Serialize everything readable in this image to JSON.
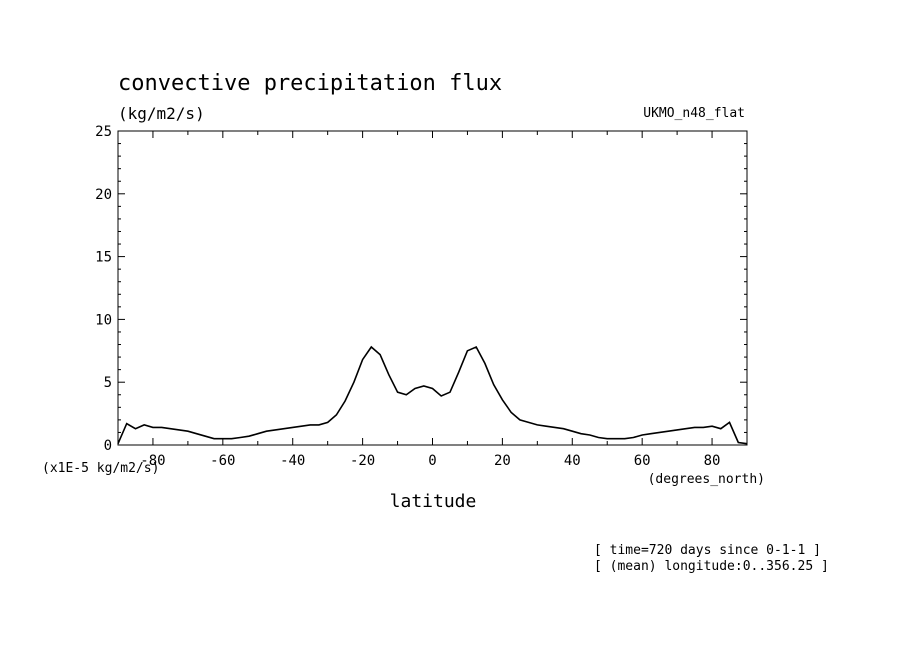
{
  "chart_data": {
    "type": "line",
    "title": "convective precipitation flux",
    "units_label": "(kg/m2/s)",
    "dataset_label": "UKMO_n48_flat",
    "scale_label": "(x1E-5 kg/m2/s)",
    "xlabel": "latitude",
    "x_units_label": "(degrees_north)",
    "info_lines": [
      "[ time=720 days since 0-1-1 ]",
      "[ (mean) longitude:0..356.25 ]"
    ],
    "xlim": [
      -90,
      90
    ],
    "ylim": [
      0,
      25
    ],
    "x_ticks": [
      "-80",
      "-60",
      "-40",
      "-20",
      "0",
      "20",
      "40",
      "60",
      "80"
    ],
    "y_ticks": [
      "0",
      "5",
      "10",
      "15",
      "20",
      "25"
    ],
    "grid": false,
    "series": [
      {
        "color": "#000000",
        "x": [
          -90,
          -87.5,
          -85,
          -82.5,
          -80,
          -77.5,
          -75,
          -72.5,
          -70,
          -67.5,
          -65,
          -62.5,
          -60,
          -57.5,
          -55,
          -52.5,
          -50,
          -47.5,
          -45,
          -42.5,
          -40,
          -37.5,
          -35,
          -32.5,
          -30,
          -27.5,
          -25,
          -22.5,
          -20,
          -17.5,
          -15,
          -12.5,
          -10,
          -7.5,
          -5,
          -2.5,
          0,
          2.5,
          5,
          7.5,
          10,
          12.5,
          15,
          17.5,
          20,
          22.5,
          25,
          27.5,
          30,
          32.5,
          35,
          37.5,
          40,
          42.5,
          45,
          47.5,
          50,
          52.5,
          55,
          57.5,
          60,
          62.5,
          65,
          67.5,
          70,
          72.5,
          75,
          77.5,
          80,
          82.5,
          85,
          87.5,
          90
        ],
        "y": [
          0.1,
          1.7,
          1.3,
          1.6,
          1.4,
          1.4,
          1.3,
          1.2,
          1.1,
          0.9,
          0.7,
          0.5,
          0.5,
          0.5,
          0.6,
          0.7,
          0.9,
          1.1,
          1.2,
          1.3,
          1.4,
          1.5,
          1.6,
          1.6,
          1.8,
          2.4,
          3.5,
          5.0,
          6.8,
          7.8,
          7.2,
          5.6,
          4.2,
          4.0,
          4.5,
          4.7,
          4.5,
          3.9,
          4.2,
          5.8,
          7.5,
          7.8,
          6.5,
          4.8,
          3.6,
          2.6,
          2.0,
          1.8,
          1.6,
          1.5,
          1.4,
          1.3,
          1.1,
          0.9,
          0.8,
          0.6,
          0.5,
          0.5,
          0.5,
          0.6,
          0.8,
          0.9,
          1.0,
          1.1,
          1.2,
          1.3,
          1.4,
          1.4,
          1.5,
          1.3,
          1.8,
          0.2,
          0.1
        ]
      }
    ]
  }
}
